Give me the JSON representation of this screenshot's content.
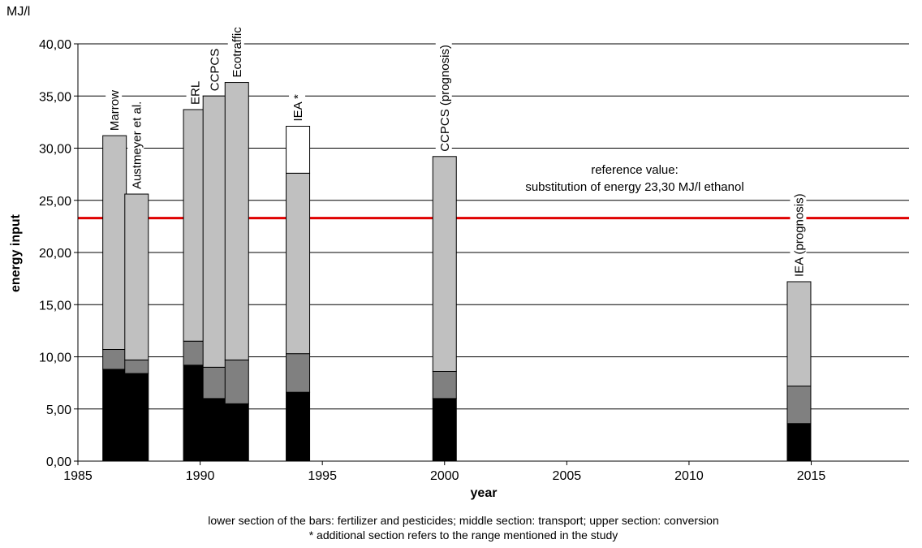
{
  "chart_data": {
    "type": "bar",
    "unit_label": "MJ/l",
    "ylabel": "energy input",
    "xlabel": "year",
    "ylim": [
      0,
      40
    ],
    "xlim": [
      1985,
      2019
    ],
    "y_ticks": [
      "0,00",
      "5,00",
      "10,00",
      "15,00",
      "20,00",
      "25,00",
      "30,00",
      "35,00",
      "40,00"
    ],
    "x_ticks": [
      "1985",
      "1990",
      "1995",
      "2000",
      "2005",
      "2010",
      "2015"
    ],
    "grid": true,
    "stack_colors": [
      "#000000",
      "#808080",
      "#c0c0c0",
      "#ffffff"
    ],
    "bars": [
      {
        "label": "Marrow",
        "x": 1986.5,
        "segments": [
          8.8,
          1.9,
          20.5
        ]
      },
      {
        "label": "Austmeyer et al.",
        "x": 1987.4,
        "segments": [
          8.4,
          1.3,
          15.9
        ]
      },
      {
        "label": "ERL",
        "x": 1989.8,
        "segments": [
          9.2,
          2.3,
          22.2
        ]
      },
      {
        "label": "CCPCS",
        "x": 1990.6,
        "segments": [
          6.0,
          3.0,
          26.0
        ]
      },
      {
        "label": "Ecotraffic",
        "x": 1991.5,
        "segments": [
          5.5,
          4.2,
          26.6
        ]
      },
      {
        "label": "IEA *",
        "x": 1994.0,
        "segments": [
          6.6,
          3.7,
          17.3,
          4.5
        ]
      },
      {
        "label": "CCPCS (prognosis)",
        "x": 2000.0,
        "segments": [
          6.0,
          2.6,
          20.6
        ]
      },
      {
        "label": "IEA (prognosis)",
        "x": 2014.5,
        "segments": [
          3.6,
          3.6,
          10.0
        ]
      }
    ],
    "reference_line": {
      "value": 23.3,
      "color": "#e00000",
      "label_line1": "reference value:",
      "label_line2": "substitution of energy 23,30 MJ/l ethanol"
    },
    "notes": [
      "lower section of the bars: fertilizer and pesticides; middle section: transport; upper section: conversion",
      "* additional section refers to the range mentioned in the study"
    ]
  }
}
